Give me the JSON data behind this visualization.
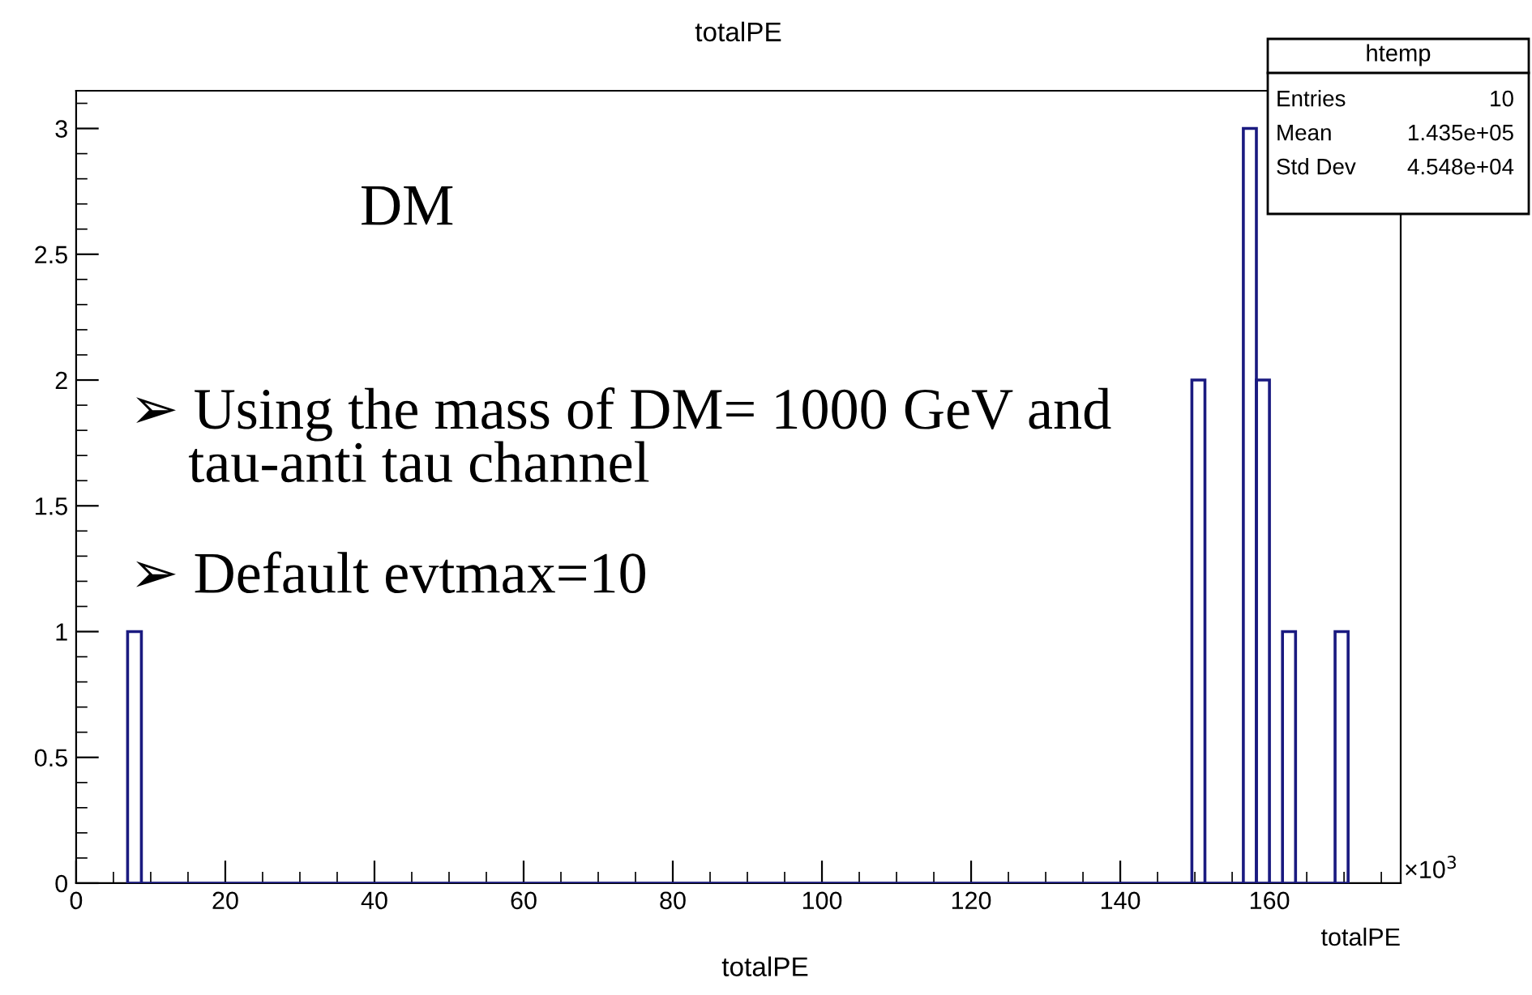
{
  "chart_data": {
    "type": "histogram",
    "title": "totalPE",
    "xlabel": "totalPE",
    "bins": [
      6.9,
      8.75,
      149.6,
      151.35,
      156.5,
      158.25,
      160.0,
      161.75,
      163.5,
      168.8,
      170.55
    ],
    "values": [
      1,
      0,
      2,
      0,
      3,
      2,
      0,
      1,
      0,
      1
    ],
    "color": "#1a1a80",
    "xlim": [
      0,
      177.6
    ],
    "ylim": [
      0,
      3.15
    ],
    "xticks": [
      0,
      20,
      40,
      60,
      80,
      100,
      120,
      140,
      160
    ],
    "yticks": [
      0,
      0.5,
      1,
      1.5,
      2,
      2.5,
      3
    ],
    "grid": false,
    "legend": false,
    "annotations": [
      "DM",
      "➢ Using the mass of DM= 1000 GeV and\n    tau-anti tau channel",
      "➢ Default evtmax=10",
      "×10$^{3}$",
      "totalPE",
      "htemp",
      "Entries",
      "10",
      "Mean",
      "1.435e+05",
      "Std Dev",
      "4.548e+04"
    ]
  }
}
